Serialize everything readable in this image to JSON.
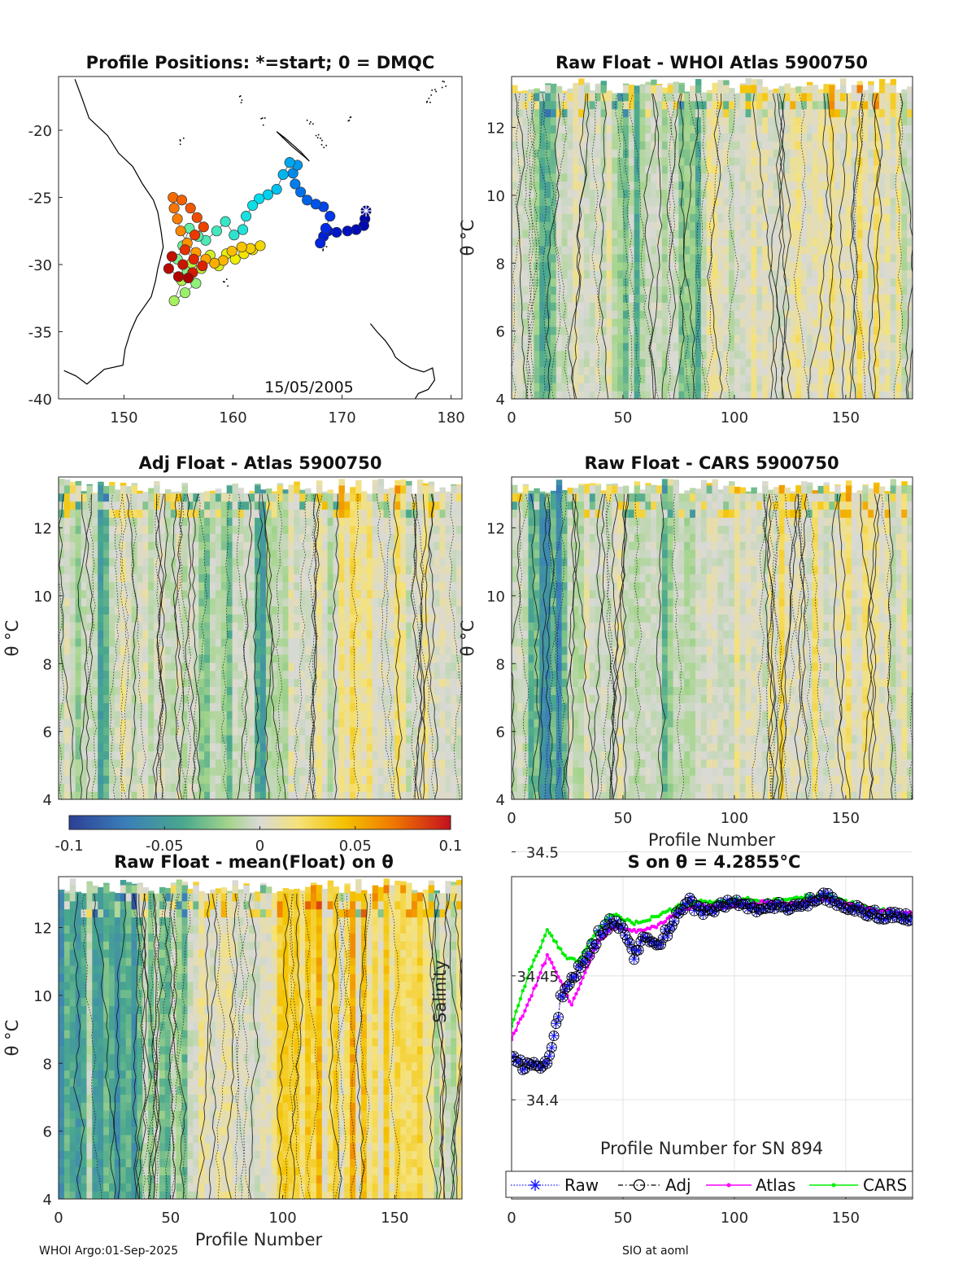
{
  "footer": {
    "left": "WHOI Argo:01-Sep-2025",
    "right": "SIO at aoml"
  },
  "colors": {
    "raw": "#1a1aff",
    "adj": "#000000",
    "atlas": "#ff00ff",
    "cars": "#00ee00"
  },
  "chart_data": [
    {
      "id": "map",
      "type": "scatter",
      "title": "Profile Positions: *=start; 0 = DMQC",
      "xlabel": "",
      "ylabel": "",
      "xlim": [
        144,
        181
      ],
      "ylim": [
        -40,
        -16
      ],
      "xticks": [
        150,
        160,
        170,
        180
      ],
      "yticks": [
        -20,
        -25,
        -30,
        -35,
        -40
      ],
      "xticklabels": [
        "150",
        "160",
        "170",
        "180"
      ],
      "yticklabels": [
        "-20",
        "-25",
        "-30",
        "-35",
        "-40"
      ],
      "annotation": "15/05/2005",
      "start": {
        "lon": 172.2,
        "lat": -26.0
      },
      "track": [
        [
          172.2,
          -26.0
        ],
        [
          172.1,
          -26.6
        ],
        [
          172.0,
          -27.1
        ],
        [
          171.3,
          -27.4
        ],
        [
          170.5,
          -27.5
        ],
        [
          169.5,
          -27.6
        ],
        [
          168.7,
          -27.5
        ],
        [
          168.3,
          -27.9
        ],
        [
          168.0,
          -28.4
        ],
        [
          168.5,
          -27.3
        ],
        [
          168.9,
          -26.4
        ],
        [
          168.3,
          -25.7
        ],
        [
          167.6,
          -25.5
        ],
        [
          166.8,
          -25.2
        ],
        [
          166.2,
          -24.6
        ],
        [
          165.7,
          -24.0
        ],
        [
          165.5,
          -23.2
        ],
        [
          165.9,
          -22.6
        ],
        [
          165.2,
          -22.4
        ],
        [
          164.6,
          -23.3
        ],
        [
          164.0,
          -24.4
        ],
        [
          163.2,
          -24.8
        ],
        [
          162.4,
          -25.1
        ],
        [
          161.8,
          -25.6
        ],
        [
          161.2,
          -26.4
        ],
        [
          160.9,
          -27.4
        ],
        [
          160.1,
          -27.8
        ],
        [
          159.3,
          -26.8
        ],
        [
          158.5,
          -27.5
        ],
        [
          157.5,
          -28.2
        ],
        [
          156.8,
          -27.9
        ],
        [
          156.0,
          -27.3
        ],
        [
          155.4,
          -28.6
        ],
        [
          154.9,
          -29.6
        ],
        [
          155.8,
          -30.5
        ],
        [
          156.6,
          -31.4
        ],
        [
          155.6,
          -32.1
        ],
        [
          154.6,
          -32.7
        ],
        [
          155.3,
          -31.2
        ],
        [
          156.2,
          -29.9
        ],
        [
          157.1,
          -30.3
        ],
        [
          157.9,
          -29.3
        ],
        [
          158.7,
          -30.1
        ],
        [
          159.4,
          -29.2
        ],
        [
          160.2,
          -29.6
        ],
        [
          161.0,
          -29.2
        ],
        [
          161.8,
          -28.9
        ],
        [
          162.5,
          -28.6
        ],
        [
          161.6,
          -28.8
        ],
        [
          160.8,
          -28.7
        ],
        [
          159.9,
          -29.0
        ],
        [
          159.1,
          -29.7
        ],
        [
          158.3,
          -29.9
        ],
        [
          157.5,
          -29.6
        ],
        [
          156.6,
          -29.1
        ],
        [
          155.8,
          -28.4
        ],
        [
          155.2,
          -27.5
        ],
        [
          154.9,
          -26.6
        ],
        [
          154.6,
          -25.8
        ],
        [
          154.5,
          -25.0
        ],
        [
          155.3,
          -25.2
        ],
        [
          156.1,
          -25.8
        ],
        [
          156.7,
          -26.5
        ],
        [
          157.3,
          -27.2
        ],
        [
          156.5,
          -27.8
        ],
        [
          155.6,
          -28.9
        ],
        [
          156.4,
          -29.6
        ],
        [
          157.2,
          -30.1
        ],
        [
          156.3,
          -30.6
        ],
        [
          155.4,
          -30.0
        ],
        [
          154.4,
          -29.4
        ],
        [
          154.1,
          -30.3
        ],
        [
          155.0,
          -30.9
        ],
        [
          155.9,
          -31.0
        ]
      ]
    },
    {
      "id": "raw_atlas",
      "type": "heatmap",
      "title": "Raw Float - WHOI Atlas  5900750",
      "xlabel": "",
      "ylabel": "θ °C",
      "xlim": [
        0,
        180
      ],
      "ylim": [
        4,
        13.5
      ],
      "xticks": [
        0,
        50,
        100,
        150
      ],
      "yticks": [
        4,
        6,
        8,
        10,
        12
      ],
      "xticklabels": [
        "0",
        "50",
        "100",
        "150"
      ],
      "yticklabels": [
        "4",
        "6",
        "8",
        "10",
        "12"
      ],
      "seed": 11,
      "bias": 0.0,
      "green_bands": [
        [
          5,
          25,
          -0.04
        ],
        [
          45,
          85,
          -0.025
        ]
      ],
      "warm_bands": [
        [
          120,
          170,
          0.015
        ]
      ]
    },
    {
      "id": "adj_atlas",
      "type": "heatmap",
      "title": "Adj Float - Atlas  5900750",
      "xlabel": "",
      "ylabel": "θ °C",
      "xlim": [
        0,
        180
      ],
      "ylim": [
        4,
        13.5
      ],
      "xticks": [],
      "yticks": [
        4,
        6,
        8,
        10,
        12
      ],
      "xticklabels": [],
      "yticklabels": [
        "4",
        "6",
        "8",
        "10",
        "12"
      ],
      "seed": 23,
      "bias": 0.0,
      "green_bands": [
        [
          5,
          25,
          -0.04
        ],
        [
          60,
          95,
          -0.03
        ]
      ],
      "warm_bands": [
        [
          125,
          170,
          0.015
        ]
      ]
    },
    {
      "id": "raw_cars",
      "type": "heatmap",
      "title": "Raw Float - CARS  5900750",
      "xlabel": "Profile Number",
      "ylabel": "θ °C",
      "xlim": [
        0,
        180
      ],
      "ylim": [
        4,
        13.5
      ],
      "xticks": [
        0,
        50,
        100,
        150
      ],
      "yticks": [
        4,
        6,
        8,
        10,
        12
      ],
      "xticklabels": [
        "0",
        "50",
        "100",
        "150"
      ],
      "yticklabels": [
        "4",
        "6",
        "8",
        "10",
        "12"
      ],
      "seed": 37,
      "bias": 0.0,
      "green_bands": [
        [
          5,
          25,
          -0.05
        ],
        [
          55,
          80,
          -0.025
        ]
      ],
      "warm_bands": [
        [
          120,
          170,
          0.012
        ]
      ]
    },
    {
      "id": "colorbar",
      "type": "colorbar",
      "range": [
        -0.1,
        0.1
      ],
      "ticks": [
        -0.1,
        -0.05,
        0,
        0.05,
        0.1
      ],
      "ticklabels": [
        "-0.1",
        "-0.05",
        "0",
        "0.05",
        "0.1"
      ]
    },
    {
      "id": "raw_mean",
      "type": "heatmap",
      "title": "Raw Float - mean(Float) on θ",
      "xlabel": "Profile Number",
      "ylabel": "θ °C",
      "xlim": [
        0,
        180
      ],
      "ylim": [
        4,
        13.5
      ],
      "xticks": [
        0,
        50,
        100,
        150
      ],
      "yticks": [
        4,
        6,
        8,
        10,
        12
      ],
      "xticklabels": [
        "0",
        "50",
        "100",
        "150"
      ],
      "yticklabels": [
        "4",
        "6",
        "8",
        "10",
        "12"
      ],
      "seed": 51,
      "bias": 0.0,
      "green_bands": [
        [
          0,
          35,
          -0.045
        ],
        [
          35,
          60,
          -0.03
        ]
      ],
      "warm_bands": [
        [
          90,
          165,
          0.03
        ]
      ]
    },
    {
      "id": "salinity",
      "type": "line",
      "title": "S on θ = 4.2855°C",
      "xlabel": "Profile Number for SN 894",
      "ylabel": "Salinity",
      "xlim": [
        0,
        180
      ],
      "ylim": [
        34.36,
        34.49
      ],
      "xticks": [
        0,
        50,
        100,
        150
      ],
      "yticks": [
        34.4,
        34.45,
        34.5
      ],
      "xticklabels": [
        "0",
        "50",
        "100",
        "150"
      ],
      "yticklabels": [
        "34.4",
        "34.45",
        "34.5"
      ],
      "legend": [
        "Raw",
        "Adj",
        "Atlas",
        "CARS"
      ],
      "anchors": {
        "raw": [
          [
            0,
            34.418
          ],
          [
            5,
            34.414
          ],
          [
            10,
            34.415
          ],
          [
            14,
            34.412
          ],
          [
            18,
            34.42
          ],
          [
            22,
            34.44
          ],
          [
            26,
            34.448
          ],
          [
            30,
            34.452
          ],
          [
            35,
            34.46
          ],
          [
            40,
            34.468
          ],
          [
            45,
            34.472
          ],
          [
            50,
            34.468
          ],
          [
            55,
            34.458
          ],
          [
            60,
            34.466
          ],
          [
            65,
            34.462
          ],
          [
            70,
            34.468
          ],
          [
            75,
            34.475
          ],
          [
            80,
            34.48
          ],
          [
            85,
            34.476
          ],
          [
            90,
            34.477
          ],
          [
            100,
            34.48
          ],
          [
            110,
            34.477
          ],
          [
            120,
            34.478
          ],
          [
            130,
            34.478
          ],
          [
            140,
            34.483
          ],
          [
            150,
            34.478
          ],
          [
            160,
            34.475
          ],
          [
            170,
            34.474
          ],
          [
            180,
            34.474
          ]
        ],
        "atlas": [
          [
            0,
            34.425
          ],
          [
            8,
            34.44
          ],
          [
            16,
            34.458
          ],
          [
            22,
            34.448
          ],
          [
            27,
            34.438
          ],
          [
            32,
            34.45
          ],
          [
            38,
            34.462
          ],
          [
            45,
            34.47
          ],
          [
            55,
            34.468
          ],
          [
            65,
            34.47
          ],
          [
            75,
            34.476
          ],
          [
            85,
            34.478
          ],
          [
            95,
            34.478
          ],
          [
            105,
            34.479
          ],
          [
            115,
            34.48
          ],
          [
            125,
            34.479
          ],
          [
            140,
            34.481
          ],
          [
            150,
            34.479
          ],
          [
            160,
            34.477
          ],
          [
            170,
            34.476
          ],
          [
            180,
            34.475
          ]
        ],
        "cars": [
          [
            0,
            34.43
          ],
          [
            8,
            34.452
          ],
          [
            16,
            34.468
          ],
          [
            24,
            34.458
          ],
          [
            30,
            34.456
          ],
          [
            36,
            34.465
          ],
          [
            45,
            34.475
          ],
          [
            55,
            34.471
          ],
          [
            65,
            34.474
          ],
          [
            75,
            34.478
          ],
          [
            85,
            34.48
          ],
          [
            95,
            34.48
          ],
          [
            105,
            34.481
          ],
          [
            115,
            34.48
          ],
          [
            125,
            34.481
          ],
          [
            140,
            34.483
          ],
          [
            150,
            34.48
          ],
          [
            160,
            34.477
          ],
          [
            170,
            34.476
          ],
          [
            180,
            34.474
          ]
        ]
      }
    }
  ]
}
